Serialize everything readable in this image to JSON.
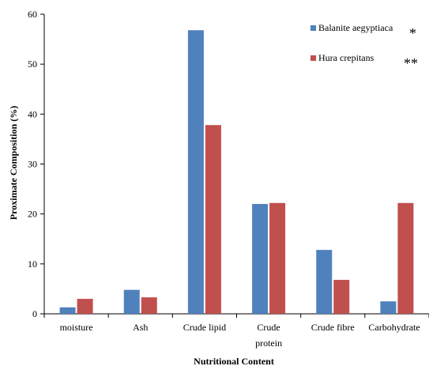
{
  "chart_data": {
    "type": "bar",
    "title": "",
    "xlabel": "Nutritional Content",
    "ylabel": "Proximate Composition (%)",
    "ylim": [
      0,
      60
    ],
    "yticks": [
      0,
      10,
      20,
      30,
      40,
      50,
      60
    ],
    "grid": false,
    "legend_position": "top-right",
    "categories": [
      [
        "moisture"
      ],
      [
        "Ash"
      ],
      [
        "Crude lipid"
      ],
      [
        "Crude",
        "protein"
      ],
      [
        "Crude fibre"
      ],
      [
        "Carbohydrate"
      ]
    ],
    "series": [
      {
        "name": "Balanite aegyptiaca",
        "marker": "*",
        "color": "#4f81bd",
        "values": [
          1.3,
          4.8,
          56.8,
          22.0,
          12.8,
          2.5
        ]
      },
      {
        "name": "Hura crepitans",
        "marker": "**",
        "color": "#c0504d",
        "values": [
          3.0,
          3.3,
          37.8,
          22.2,
          6.8,
          22.2
        ]
      }
    ]
  }
}
